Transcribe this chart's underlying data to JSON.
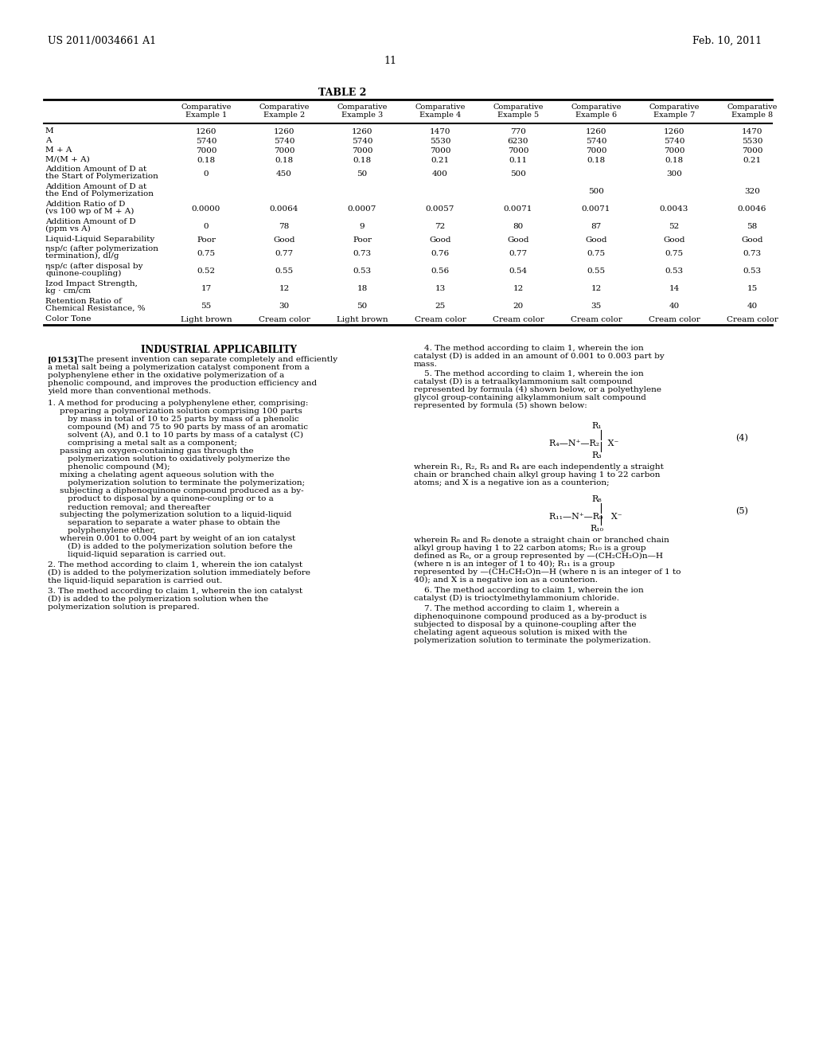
{
  "page_header_left": "US 2011/0034661 A1",
  "page_header_right": "Feb. 10, 2011",
  "page_number": "11",
  "table_title": "TABLE 2",
  "table_columns": [
    "",
    "Comparative\nExample 1",
    "Comparative\nExample 2",
    "Comparative\nExample 3",
    "Comparative\nExample 4",
    "Comparative\nExample 5",
    "Comparative\nExample 6",
    "Comparative\nExample 7",
    "Comparative\nExample 8"
  ],
  "table_rows": [
    [
      "M",
      "1260",
      "1260",
      "1260",
      "1470",
      "770",
      "1260",
      "1260",
      "1470"
    ],
    [
      "A",
      "5740",
      "5740",
      "5740",
      "5530",
      "6230",
      "5740",
      "5740",
      "5530"
    ],
    [
      "M + A",
      "7000",
      "7000",
      "7000",
      "7000",
      "7000",
      "7000",
      "7000",
      "7000"
    ],
    [
      "M/(M + A)",
      "0.18",
      "0.18",
      "0.18",
      "0.21",
      "0.11",
      "0.18",
      "0.18",
      "0.21"
    ],
    [
      "Addition Amount of D at\nthe Start of Polymerization",
      "0",
      "450",
      "50",
      "400",
      "500",
      "",
      "300",
      ""
    ],
    [
      "Addition Amount of D at\nthe End of Polymerization",
      "",
      "",
      "",
      "",
      "",
      "500",
      "",
      "320"
    ],
    [
      "Addition Ratio of D\n(vs 100 wp of M + A)",
      "0.0000",
      "0.0064",
      "0.0007",
      "0.0057",
      "0.0071",
      "0.0071",
      "0.0043",
      "0.0046"
    ],
    [
      "Addition Amount of D\n(ppm vs A)",
      "0",
      "78",
      "9",
      "72",
      "80",
      "87",
      "52",
      "58"
    ],
    [
      "Liquid-Liquid Separability",
      "Poor",
      "Good",
      "Poor",
      "Good",
      "Good",
      "Good",
      "Good",
      "Good"
    ],
    [
      "ηsp/c (after polymerization\ntermination), dl/g",
      "0.75",
      "0.77",
      "0.73",
      "0.76",
      "0.77",
      "0.75",
      "0.75",
      "0.73"
    ],
    [
      "ηsp/c (after disposal by\nquinone-coupling)",
      "0.52",
      "0.55",
      "0.53",
      "0.56",
      "0.54",
      "0.55",
      "0.53",
      "0.53"
    ],
    [
      "Izod Impact Strength,\nkg · cm/cm",
      "17",
      "12",
      "18",
      "13",
      "12",
      "12",
      "14",
      "15"
    ],
    [
      "Retention Ratio of\nChemical Resistance, %",
      "55",
      "30",
      "50",
      "25",
      "20",
      "35",
      "40",
      "40"
    ],
    [
      "Color Tone",
      "Light brown",
      "Cream color",
      "Light brown",
      "Cream color",
      "Cream color",
      "Cream color",
      "Cream color",
      "Cream color"
    ]
  ],
  "industrial_applicability_title": "INDUSTRIAL APPLICABILITY",
  "industrial_applicability_text": "[0153] The present invention can separate completely and efficiently a metal salt being a polymerization catalyst component from a polyphenylene ether in the oxidative polymerization of a phenolic compound, and improves the production efficiency and yield more than conventional methods.",
  "claim1_title": "1. A method for producing a polyphenylene ether, comprising:",
  "claim1_items": [
    "preparing a polymerization solution comprising 100 parts by mass in total of 10 to 25 parts by mass of a phenolic compound (M) and 75 to 90 parts by mass of an aromatic solvent (A), and 0.1 to 10 parts by mass of a catalyst (C) comprising a metal salt as a component;",
    "passing an oxygen-containing gas through the polymerization solution to oxidatively polymerize the phenolic compound (M);",
    "mixing a chelating agent aqueous solution with the polymerization solution to terminate the polymerization;",
    "subjecting a diphenoquinone compound produced as a by-product to disposal by a quinone-coupling or to a reduction removal; and thereafter",
    "subjecting the polymerization solution to a liquid-liquid separation to separate a water phase to obtain the polyphenylene ether,",
    "wherein 0.001 to 0.004 part by weight of an ion catalyst (D) is added to the polymerization solution before the liquid-liquid separation is carried out."
  ],
  "claim2_text": "2. The method according to claim 1, wherein the ion catalyst (D) is added to the polymerization solution immediately before the liquid-liquid separation is carried out.",
  "claim3_text": "3. The method according to claim 1, wherein the ion catalyst (D) is added to the polymerization solution when the polymerization solution is prepared.",
  "right_col_claim4": "4. The method according to claim 1, wherein the ion catalyst (D) is added in an amount of 0.001 to 0.003 part by mass.",
  "right_col_claim5": "5. The method according to claim 1, wherein the ion catalyst (D) is a tetraalkylammonium salt compound represented by formula (4) shown below, or a polyethylene glycol group-containing alkylammonium salt compound represented by formula (5) shown below:",
  "formula4_label": "(4)",
  "formula4_desc": "R₄—N⁺—R₂   X⁻",
  "formula4_r1": "R₁",
  "formula4_r3": "R₃",
  "formula4_text": "wherein R₁, R₂, R₃ and R₄ are each independently a straight chain or branched chain alkyl group having 1 to 22 carbon atoms; and X is a negative ion as a counterion;",
  "formula5_label": "(5)",
  "formula5_r8": "R₈",
  "formula6_text": "wherein R₈ and R₉ denote a straight chain or branched chain alkyl group having 1 to 22 carbon atoms; R₁₀ is a group defined as R₈, or a group represented by —(CH₂CH₂O)n—H (where n is an integer of 1 to 40); R₁₁ is a group represented by —(CH₂CH₂O)n—H (where n is an integer of 1 to 40); and X is a negative ion as a counterion.",
  "claim6_text": "6. The method according to claim 1, wherein the ion catalyst (D) is trioctylmethylammonium chloride.",
  "claim7_text": "7. The method according to claim 1, wherein a diphenoquinone compound produced as a by-product is subjected to disposal by a quinone-coupling after the chelating agent aqueous solution is mixed with the polymerization solution to terminate the polymerization."
}
